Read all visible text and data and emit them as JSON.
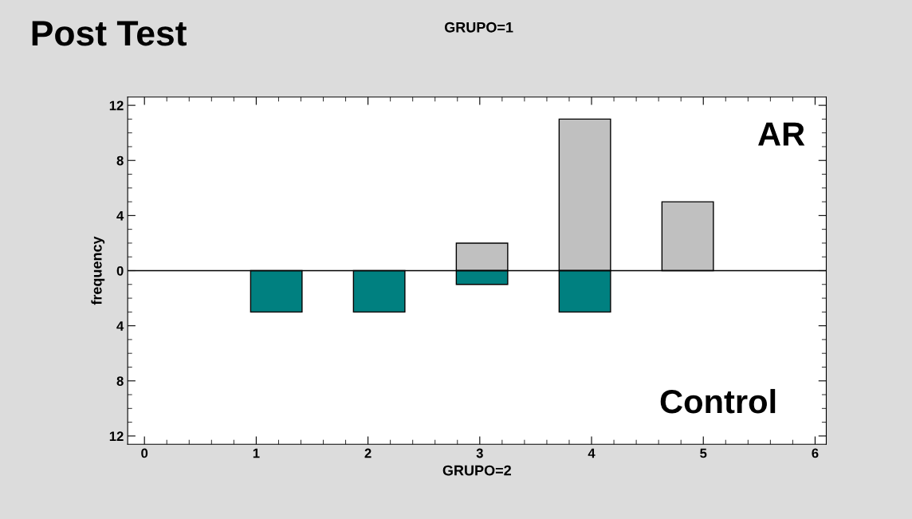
{
  "chart_data": {
    "type": "histogram",
    "title": "Post Test",
    "subtitle": "GRUPO=1",
    "xlabel": "GRUPO=2",
    "ylabel": "frequency",
    "bins": [
      0.95,
      1.41,
      1.87,
      2.33,
      2.79,
      3.25,
      3.71,
      4.17,
      4.63,
      5.09
    ],
    "series": [
      {
        "name": "AR",
        "color": "#c0c0c0",
        "values": [
          0,
          0,
          0,
          0,
          2,
          0,
          11,
          0,
          5
        ]
      },
      {
        "name": "Control",
        "color": "#008080",
        "values": [
          -3,
          0,
          -3,
          0,
          -1,
          0,
          -3,
          0,
          0
        ]
      }
    ],
    "xlim": [
      -0.15,
      6.1
    ],
    "xticks": [
      0,
      1,
      2,
      3,
      4,
      5,
      6
    ],
    "ylim": [
      -12.6,
      12.6
    ],
    "yticks": [
      {
        "value": -12,
        "label": "12"
      },
      {
        "value": -8,
        "label": "8"
      },
      {
        "value": -4,
        "label": "4"
      },
      0,
      4,
      8,
      12
    ],
    "ref_lines": [
      {
        "axis": "y",
        "value": 0,
        "color": "#000000"
      }
    ],
    "grid": false,
    "legend": "right"
  }
}
